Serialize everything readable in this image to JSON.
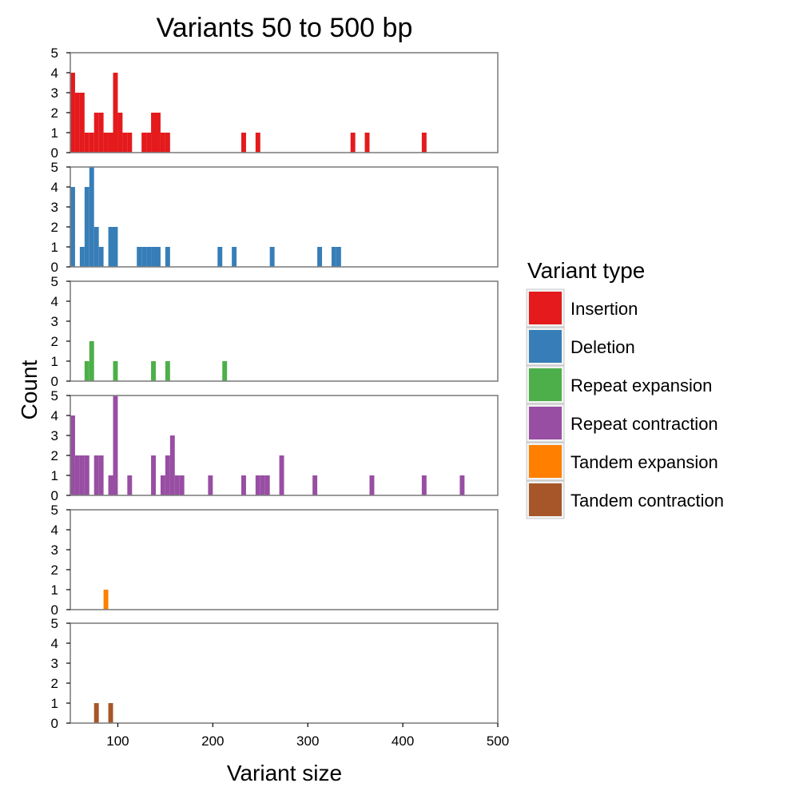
{
  "chart_data": {
    "type": "bar",
    "title": "Variants 50 to 500 bp",
    "xlabel": "Variant size",
    "ylabel": "Count",
    "xlim": [
      50,
      500
    ],
    "ylim": [
      0,
      5
    ],
    "bin_width": 5,
    "x_ticks": [
      "100",
      "200",
      "300",
      "400",
      "500"
    ],
    "y_ticks": [
      "0",
      "1",
      "2",
      "3",
      "4",
      "5"
    ],
    "legend_title": "Variant type",
    "legend_position": "right",
    "grid": false,
    "series": [
      {
        "name": "Insertion",
        "color": "#e41a1c",
        "bins": [
          {
            "x": 52.5,
            "count": 4
          },
          {
            "x": 57.5,
            "count": 3
          },
          {
            "x": 62.5,
            "count": 3
          },
          {
            "x": 67.5,
            "count": 1
          },
          {
            "x": 72.5,
            "count": 1
          },
          {
            "x": 77.5,
            "count": 2
          },
          {
            "x": 82.5,
            "count": 2
          },
          {
            "x": 87.5,
            "count": 1
          },
          {
            "x": 92.5,
            "count": 1
          },
          {
            "x": 97.5,
            "count": 4
          },
          {
            "x": 102.5,
            "count": 2
          },
          {
            "x": 107.5,
            "count": 1
          },
          {
            "x": 112.5,
            "count": 1
          },
          {
            "x": 127.5,
            "count": 1
          },
          {
            "x": 132.5,
            "count": 1
          },
          {
            "x": 137.5,
            "count": 2
          },
          {
            "x": 142.5,
            "count": 2
          },
          {
            "x": 147.5,
            "count": 1
          },
          {
            "x": 152.5,
            "count": 1
          },
          {
            "x": 232.5,
            "count": 1
          },
          {
            "x": 247.5,
            "count": 1
          },
          {
            "x": 347.5,
            "count": 1
          },
          {
            "x": 362.5,
            "count": 1
          },
          {
            "x": 422.5,
            "count": 1
          }
        ]
      },
      {
        "name": "Deletion",
        "color": "#377eb8",
        "bins": [
          {
            "x": 52.5,
            "count": 4
          },
          {
            "x": 62.5,
            "count": 1
          },
          {
            "x": 67.5,
            "count": 4
          },
          {
            "x": 72.5,
            "count": 5
          },
          {
            "x": 77.5,
            "count": 2
          },
          {
            "x": 82.5,
            "count": 1
          },
          {
            "x": 92.5,
            "count": 2
          },
          {
            "x": 97.5,
            "count": 2
          },
          {
            "x": 122.5,
            "count": 1
          },
          {
            "x": 127.5,
            "count": 1
          },
          {
            "x": 132.5,
            "count": 1
          },
          {
            "x": 137.5,
            "count": 1
          },
          {
            "x": 142.5,
            "count": 1
          },
          {
            "x": 152.5,
            "count": 1
          },
          {
            "x": 207.5,
            "count": 1
          },
          {
            "x": 222.5,
            "count": 1
          },
          {
            "x": 262.5,
            "count": 1
          },
          {
            "x": 312.5,
            "count": 1
          },
          {
            "x": 327.5,
            "count": 1
          },
          {
            "x": 332.5,
            "count": 1
          }
        ]
      },
      {
        "name": "Repeat expansion",
        "color": "#4daf4a",
        "bins": [
          {
            "x": 67.5,
            "count": 1
          },
          {
            "x": 72.5,
            "count": 2
          },
          {
            "x": 97.5,
            "count": 1
          },
          {
            "x": 137.5,
            "count": 1
          },
          {
            "x": 152.5,
            "count": 1
          },
          {
            "x": 212.5,
            "count": 1
          }
        ]
      },
      {
        "name": "Repeat contraction",
        "color": "#984ea3",
        "bins": [
          {
            "x": 52.5,
            "count": 4
          },
          {
            "x": 57.5,
            "count": 2
          },
          {
            "x": 62.5,
            "count": 2
          },
          {
            "x": 67.5,
            "count": 2
          },
          {
            "x": 77.5,
            "count": 2
          },
          {
            "x": 82.5,
            "count": 2
          },
          {
            "x": 92.5,
            "count": 1
          },
          {
            "x": 97.5,
            "count": 5
          },
          {
            "x": 112.5,
            "count": 1
          },
          {
            "x": 137.5,
            "count": 2
          },
          {
            "x": 147.5,
            "count": 1
          },
          {
            "x": 152.5,
            "count": 2
          },
          {
            "x": 157.5,
            "count": 3
          },
          {
            "x": 162.5,
            "count": 1
          },
          {
            "x": 167.5,
            "count": 1
          },
          {
            "x": 197.5,
            "count": 1
          },
          {
            "x": 232.5,
            "count": 1
          },
          {
            "x": 247.5,
            "count": 1
          },
          {
            "x": 252.5,
            "count": 1
          },
          {
            "x": 257.5,
            "count": 1
          },
          {
            "x": 272.5,
            "count": 2
          },
          {
            "x": 307.5,
            "count": 1
          },
          {
            "x": 367.5,
            "count": 1
          },
          {
            "x": 422.5,
            "count": 1
          },
          {
            "x": 462.5,
            "count": 1
          }
        ]
      },
      {
        "name": "Tandem expansion",
        "color": "#ff7f00",
        "bins": [
          {
            "x": 87.5,
            "count": 1
          }
        ]
      },
      {
        "name": "Tandem contraction",
        "color": "#a65628",
        "bins": [
          {
            "x": 77.5,
            "count": 1
          },
          {
            "x": 92.5,
            "count": 1
          }
        ]
      }
    ]
  }
}
